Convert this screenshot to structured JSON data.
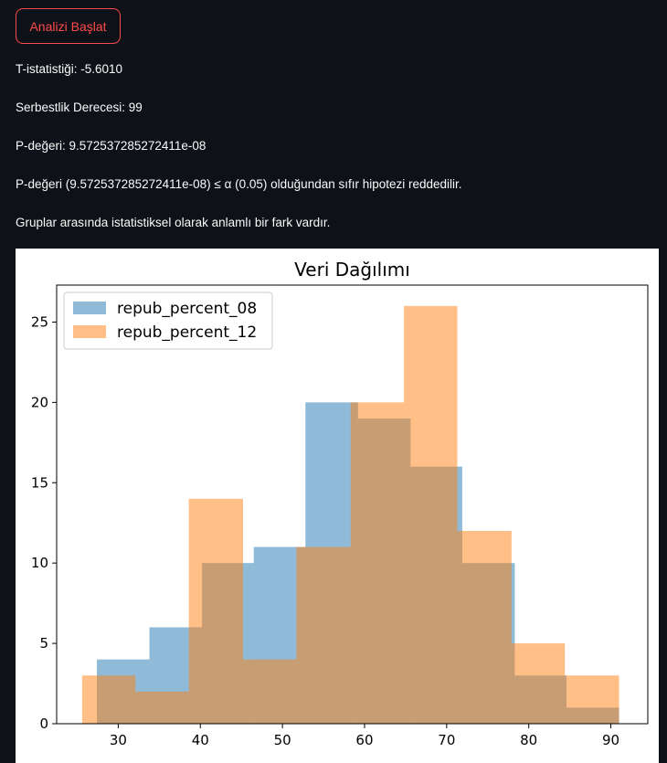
{
  "actions": {
    "start_label": "Analizi Başlat"
  },
  "results": {
    "t_stat": "T-istatistiği: -5.6010",
    "dof": "Serbestlik Derecesi: 99",
    "p_value": "P-değeri: 9.572537285272411e-08",
    "decision": "P-değeri (9.572537285272411e-08) ≤ α (0.05) olduğundan sıfır hipotezi reddedilir.",
    "conclusion": "Gruplar arasında istatistiksel olarak anlamlı bir fark vardır."
  },
  "colors": {
    "page_bg": "#0e1117",
    "accent": "#ff4b4b",
    "series_1": "#1f77b4",
    "series_2": "#ff7f0e"
  },
  "chart_data": {
    "type": "bar",
    "subtype": "histogram",
    "title": "Veri Dağılımı",
    "xlabel": "",
    "ylabel": "",
    "xlim": [
      22.5,
      94.5
    ],
    "ylim": [
      0,
      27.3
    ],
    "x_ticks": [
      30,
      40,
      50,
      60,
      70,
      80,
      90
    ],
    "y_ticks": [
      0,
      5,
      10,
      15,
      20,
      25
    ],
    "legend_position": "top-left",
    "opacity": 0.5,
    "series": [
      {
        "name": "repub_percent_08",
        "color": "#1f77b4",
        "bins": [
          {
            "x0": 27.4,
            "x1": 33.8,
            "count": 4
          },
          {
            "x0": 33.8,
            "x1": 40.2,
            "count": 6
          },
          {
            "x0": 40.2,
            "x1": 46.5,
            "count": 10
          },
          {
            "x0": 46.5,
            "x1": 52.8,
            "count": 11
          },
          {
            "x0": 52.8,
            "x1": 59.2,
            "count": 20
          },
          {
            "x0": 59.2,
            "x1": 65.6,
            "count": 19
          },
          {
            "x0": 65.6,
            "x1": 71.9,
            "count": 16
          },
          {
            "x0": 71.9,
            "x1": 78.3,
            "count": 10
          },
          {
            "x0": 78.3,
            "x1": 84.6,
            "count": 3
          },
          {
            "x0": 84.6,
            "x1": 91.0,
            "count": 1
          }
        ]
      },
      {
        "name": "repub_percent_12",
        "color": "#ff7f0e",
        "bins": [
          {
            "x0": 25.6,
            "x1": 32.1,
            "count": 3
          },
          {
            "x0": 32.1,
            "x1": 38.6,
            "count": 2
          },
          {
            "x0": 38.6,
            "x1": 45.2,
            "count": 14
          },
          {
            "x0": 45.2,
            "x1": 51.7,
            "count": 4
          },
          {
            "x0": 51.7,
            "x1": 58.3,
            "count": 11
          },
          {
            "x0": 58.3,
            "x1": 64.8,
            "count": 20
          },
          {
            "x0": 64.8,
            "x1": 71.3,
            "count": 26
          },
          {
            "x0": 71.3,
            "x1": 77.9,
            "count": 12
          },
          {
            "x0": 77.9,
            "x1": 84.4,
            "count": 5
          },
          {
            "x0": 84.4,
            "x1": 91.0,
            "count": 3
          }
        ]
      }
    ]
  }
}
